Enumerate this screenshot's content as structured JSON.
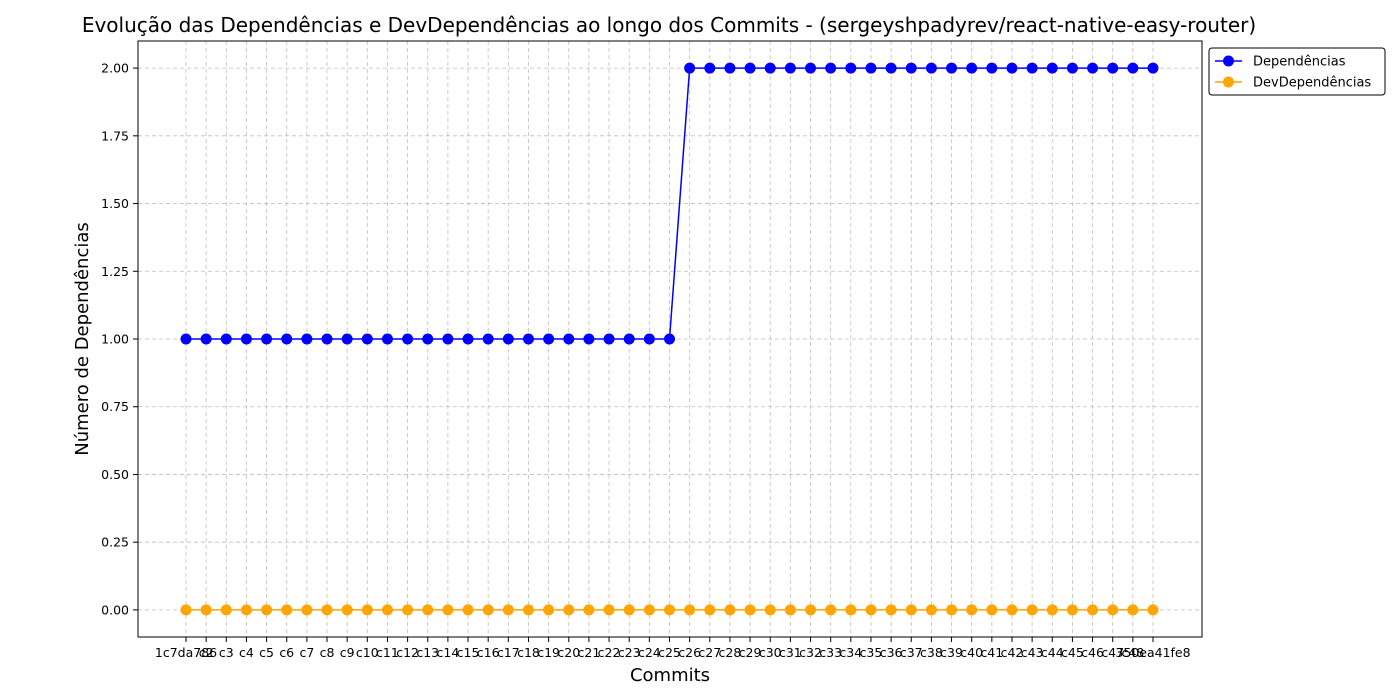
{
  "chart_data": {
    "type": "line",
    "title": "Evolução das Dependências e DevDependências ao longo dos Commits - (sergeyshpadyrev/react-native-easy-router)",
    "xlabel": "Commits",
    "ylabel": "Número de Dependências",
    "ylim": [
      -0.1,
      2.1
    ],
    "yticks": [
      "0.00",
      "0.25",
      "0.50",
      "0.75",
      "1.00",
      "1.25",
      "1.50",
      "1.75",
      "2.00"
    ],
    "ytick_values": [
      0,
      0.25,
      0.5,
      0.75,
      1.0,
      1.25,
      1.5,
      1.75,
      2.0
    ],
    "grid": true,
    "legend_position": "top-right outside",
    "categories": [
      "1c7da786",
      "c2",
      "c3",
      "c4",
      "c5",
      "c6",
      "c7",
      "c8",
      "c9",
      "c10",
      "c11",
      "c12",
      "c13",
      "c14",
      "c15",
      "c16",
      "c17",
      "c18",
      "c19",
      "c20",
      "c21",
      "c22",
      "c23",
      "c24",
      "c25",
      "c26",
      "c27",
      "c28",
      "c29",
      "c30",
      "c31",
      "c32",
      "c33",
      "c34",
      "c35",
      "c36",
      "c37",
      "c38",
      "c39",
      "c40",
      "c41",
      "c42",
      "c43",
      "c44",
      "c45",
      "c46",
      "c47",
      "c48",
      "350ea41fe8"
    ],
    "series": [
      {
        "name": "Dependências",
        "color": "#0000ff",
        "values": [
          1,
          1,
          1,
          1,
          1,
          1,
          1,
          1,
          1,
          1,
          1,
          1,
          1,
          1,
          1,
          1,
          1,
          1,
          1,
          1,
          1,
          1,
          1,
          1,
          1,
          2,
          2,
          2,
          2,
          2,
          2,
          2,
          2,
          2,
          2,
          2,
          2,
          2,
          2,
          2,
          2,
          2,
          2,
          2,
          2,
          2,
          2,
          2,
          2
        ]
      },
      {
        "name": "DevDependências",
        "color": "#ffa500",
        "values": [
          0,
          0,
          0,
          0,
          0,
          0,
          0,
          0,
          0,
          0,
          0,
          0,
          0,
          0,
          0,
          0,
          0,
          0,
          0,
          0,
          0,
          0,
          0,
          0,
          0,
          0,
          0,
          0,
          0,
          0,
          0,
          0,
          0,
          0,
          0,
          0,
          0,
          0,
          0,
          0,
          0,
          0,
          0,
          0,
          0,
          0,
          0,
          0,
          0
        ]
      }
    ]
  }
}
